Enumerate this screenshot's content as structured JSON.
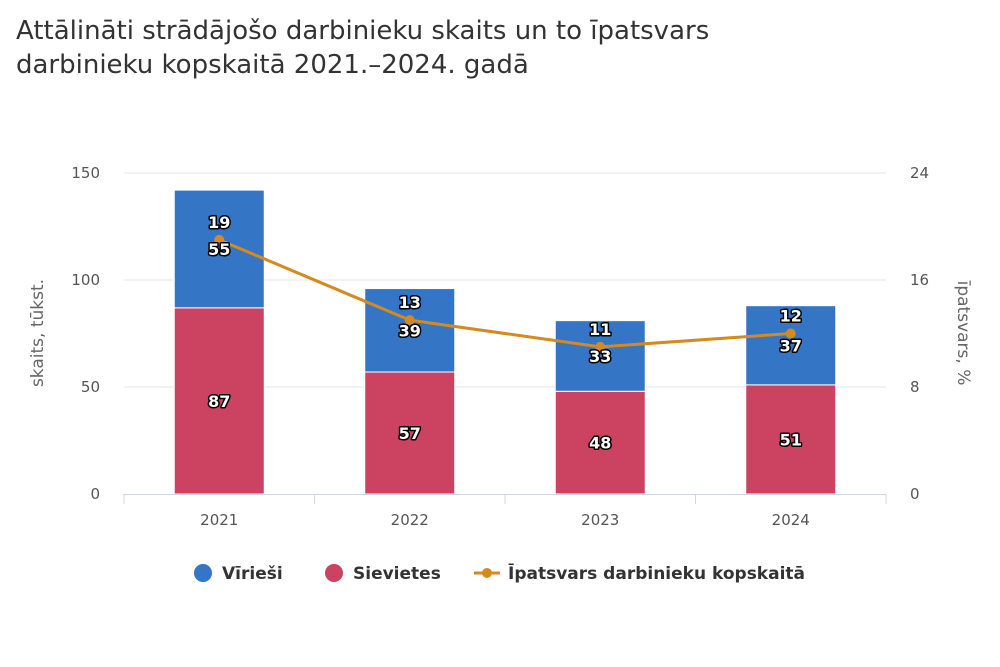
{
  "title_lines": [
    "Attālināti strādājošo darbinieku skaits un to īpatsvars",
    "darbinieku kopskaitā 2021.–2024. gadā"
  ],
  "colors": {
    "men": "#3575c6",
    "women": "#cc4261",
    "share": "#d48a1e",
    "grid": "#e6e6e6",
    "axis": "#ccd6eb"
  },
  "chart_data": {
    "type": "bar",
    "stacked": true,
    "categories": [
      "2021",
      "2022",
      "2023",
      "2024"
    ],
    "series": [
      {
        "name": "Vīrieši",
        "type": "bar",
        "axis": "left",
        "values": [
          55,
          39,
          33,
          37
        ]
      },
      {
        "name": "Sievietes",
        "type": "bar",
        "axis": "left",
        "values": [
          87,
          57,
          48,
          51
        ]
      },
      {
        "name": "Īpatsvars darbinieku kopskaitā",
        "type": "line",
        "axis": "right",
        "values": [
          19,
          13,
          11,
          12
        ]
      }
    ],
    "ylabel": "skaits, tūkst.",
    "ylim": [
      0,
      150
    ],
    "yticks": [
      0,
      50,
      100,
      150
    ],
    "y2label": "īpatsvars, %",
    "y2lim": [
      0,
      24
    ],
    "y2ticks": [
      0,
      8,
      16,
      24
    ],
    "grid": true,
    "legend_position": "bottom"
  }
}
